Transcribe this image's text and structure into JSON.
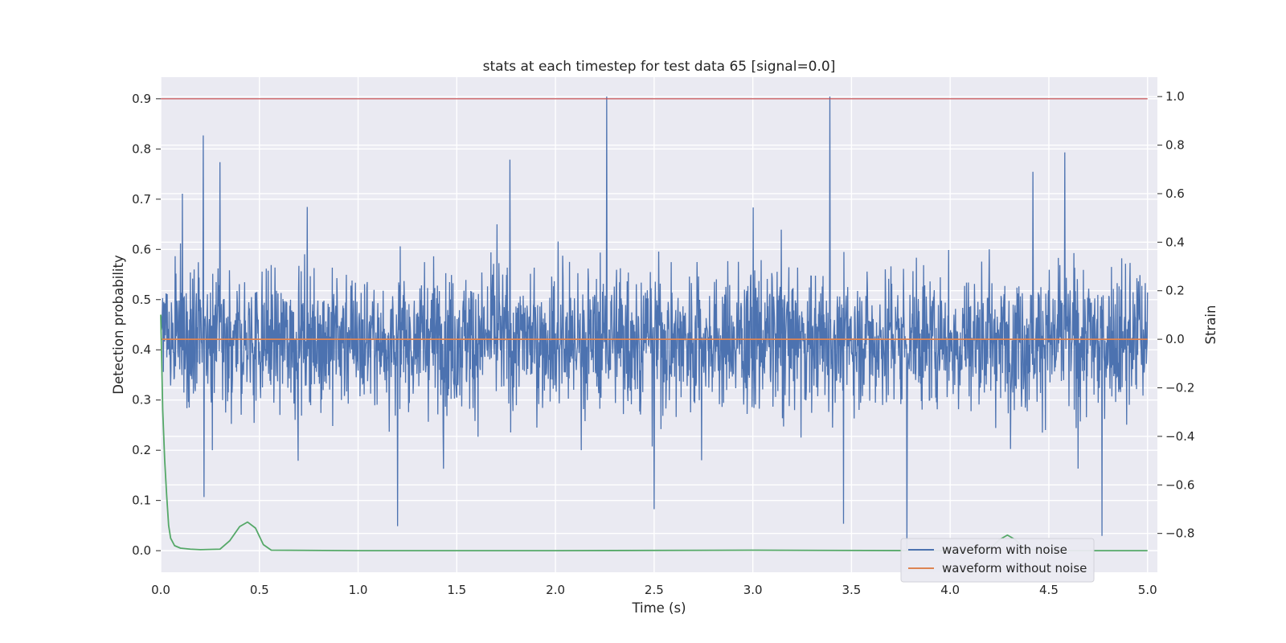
{
  "chart_data": {
    "type": "line",
    "title": "stats at each timestep for test data 65 [signal=0.0]",
    "xlabel": "Time (s)",
    "ylabel_left": "Detection probability",
    "ylabel_right": "Strain",
    "xlim": [
      0.0,
      5.05
    ],
    "ylim_left": [
      -0.043,
      0.943
    ],
    "ylim_right": [
      -0.96,
      1.08
    ],
    "x_ticks": [
      "0.0",
      "0.5",
      "1.0",
      "1.5",
      "2.0",
      "2.5",
      "3.0",
      "3.5",
      "4.0",
      "4.5",
      "5.0"
    ],
    "x_tick_values": [
      0.0,
      0.5,
      1.0,
      1.5,
      2.0,
      2.5,
      3.0,
      3.5,
      4.0,
      4.5,
      5.0
    ],
    "y_left_ticks": [
      "0.0",
      "0.1",
      "0.2",
      "0.3",
      "0.4",
      "0.5",
      "0.6",
      "0.7",
      "0.8",
      "0.9"
    ],
    "y_left_tick_values": [
      0.0,
      0.1,
      0.2,
      0.3,
      0.4,
      0.5,
      0.6,
      0.7,
      0.8,
      0.9
    ],
    "y_right_ticks": [
      "1.0",
      "0.8",
      "0.6",
      "0.4",
      "0.2",
      "0.0",
      "−0.2",
      "−0.4",
      "−0.6",
      "−0.8"
    ],
    "y_right_tick_values": [
      1.0,
      0.8,
      0.6,
      0.4,
      0.2,
      0.0,
      -0.2,
      -0.4,
      -0.6,
      -0.8
    ],
    "grid": true,
    "legend_position": "lower-right",
    "series": [
      {
        "name": "waveform with noise",
        "axis": "right",
        "color": "#4c72b0",
        "x_range": [
          0.0,
          5.0
        ],
        "amplitude_range": [
          -0.87,
          1.0
        ],
        "spikes": [
          {
            "x": 0.215,
            "y": 0.84
          },
          {
            "x": 0.3,
            "y": 0.73
          },
          {
            "x": 2.26,
            "y": 1.0
          },
          {
            "x": 3.39,
            "y": 1.0
          },
          {
            "x": 1.77,
            "y": 0.74
          },
          {
            "x": 4.58,
            "y": 0.77
          },
          {
            "x": 4.42,
            "y": 0.69
          },
          {
            "x": 1.2,
            "y": -0.77
          },
          {
            "x": 3.78,
            "y": -0.87
          },
          {
            "x": 4.77,
            "y": -0.81
          },
          {
            "x": 2.5,
            "y": -0.7
          },
          {
            "x": 0.22,
            "y": -0.65
          },
          {
            "x": 3.46,
            "y": -0.76
          }
        ]
      },
      {
        "name": "waveform without noise",
        "axis": "right",
        "color": "#dd8452",
        "x": [
          0.0,
          5.0
        ],
        "y": [
          0.0,
          0.0
        ]
      },
      {
        "name": "",
        "axis": "left",
        "color": "#55a868",
        "x": [
          0.0,
          0.01,
          0.02,
          0.03,
          0.04,
          0.05,
          0.07,
          0.1,
          0.15,
          0.2,
          0.3,
          0.35,
          0.4,
          0.44,
          0.48,
          0.52,
          0.56,
          1.0,
          2.0,
          3.0,
          4.0,
          4.2,
          4.25,
          4.29,
          4.33,
          4.38,
          4.5,
          5.0
        ],
        "y": [
          0.47,
          0.28,
          0.18,
          0.11,
          0.05,
          0.025,
          0.01,
          0.005,
          0.003,
          0.002,
          0.003,
          0.02,
          0.048,
          0.057,
          0.045,
          0.012,
          0.001,
          0.0,
          0.0,
          0.001,
          0.0,
          0.003,
          0.022,
          0.031,
          0.022,
          0.003,
          0.0,
          0.0
        ]
      },
      {
        "name": "",
        "axis": "left",
        "color": "#c44e52",
        "x": [
          0.0,
          5.0
        ],
        "y": [
          0.9,
          0.9
        ]
      }
    ],
    "legend_entries": [
      "waveform with noise",
      "waveform without noise"
    ]
  }
}
